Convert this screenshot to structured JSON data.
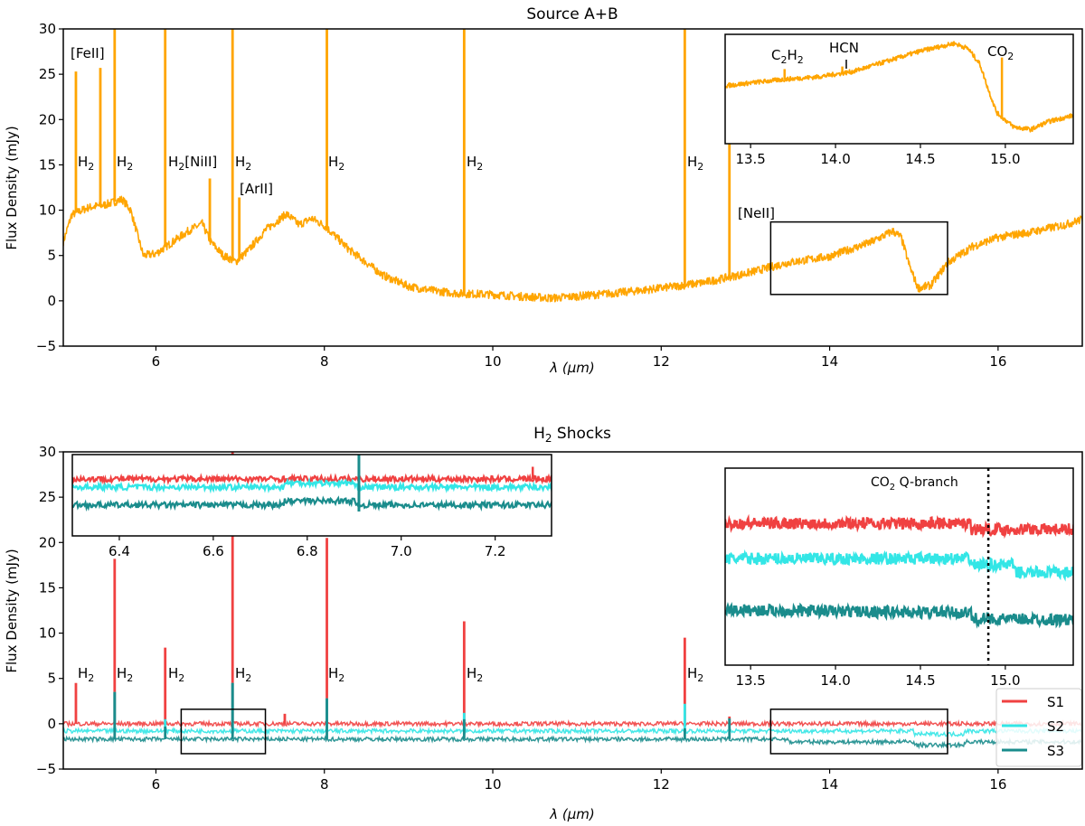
{
  "chart_data": [
    {
      "type": "line",
      "title": "Source A+B",
      "xlabel": "λ (μm)",
      "ylabel": "Flux Density (mJy)",
      "xlim": [
        4.9,
        17.0
      ],
      "ylim": [
        -5,
        30
      ],
      "xticks": [
        6,
        8,
        10,
        12,
        14,
        16
      ],
      "yticks": [
        -5,
        0,
        5,
        10,
        15,
        20,
        25,
        30
      ],
      "series": [
        {
          "name": "Source A+B",
          "color": "#ffa500",
          "continuum": [
            [
              4.9,
              6.5
            ],
            [
              5.0,
              9.5
            ],
            [
              5.2,
              10.3
            ],
            [
              5.4,
              10.6
            ],
            [
              5.6,
              11.2
            ],
            [
              5.7,
              10.0
            ],
            [
              5.85,
              5.0
            ],
            [
              6.0,
              5.2
            ],
            [
              6.2,
              6.5
            ],
            [
              6.4,
              7.8
            ],
            [
              6.55,
              8.5
            ],
            [
              6.65,
              6.5
            ],
            [
              6.8,
              5.0
            ],
            [
              6.95,
              4.3
            ],
            [
              7.1,
              5.6
            ],
            [
              7.3,
              7.8
            ],
            [
              7.55,
              9.6
            ],
            [
              7.7,
              8.4
            ],
            [
              7.85,
              9.1
            ],
            [
              8.0,
              8.3
            ],
            [
              8.3,
              5.6
            ],
            [
              8.7,
              2.8
            ],
            [
              9.0,
              1.6
            ],
            [
              9.3,
              1.1
            ],
            [
              9.6,
              0.8
            ],
            [
              10.0,
              0.7
            ],
            [
              10.3,
              0.5
            ],
            [
              10.7,
              0.3
            ],
            [
              11.0,
              0.5
            ],
            [
              11.5,
              0.9
            ],
            [
              12.0,
              1.4
            ],
            [
              12.5,
              2.0
            ],
            [
              13.0,
              3.0
            ],
            [
              13.5,
              4.2
            ],
            [
              14.0,
              4.9
            ],
            [
              14.5,
              6.5
            ],
            [
              14.75,
              7.7
            ],
            [
              14.85,
              7.0
            ],
            [
              14.95,
              3.8
            ],
            [
              15.05,
              1.4
            ],
            [
              15.2,
              1.7
            ],
            [
              15.4,
              4.2
            ],
            [
              15.7,
              6.0
            ],
            [
              16.0,
              7.0
            ],
            [
              16.4,
              7.6
            ],
            [
              16.8,
              8.4
            ],
            [
              17.0,
              9.0
            ]
          ],
          "peaks": [
            [
              5.05,
              25.3
            ],
            [
              5.34,
              25.7
            ],
            [
              5.51,
              30
            ],
            [
              6.11,
              30
            ],
            [
              6.64,
              13.5
            ],
            [
              6.91,
              30
            ],
            [
              6.99,
              11.4
            ],
            [
              8.03,
              30
            ],
            [
              9.66,
              30
            ],
            [
              12.28,
              30
            ],
            [
              12.81,
              17.8
            ]
          ]
        }
      ],
      "annotations": [
        "[FeII]",
        "H2",
        "H2",
        "H2[NiII]",
        "H2",
        "[ArII]",
        "H2",
        "H2",
        "H2",
        "[NeII]"
      ],
      "zoom_box": {
        "x": [
          13.3,
          15.4
        ],
        "y": [
          0.7,
          8.7
        ]
      },
      "inset": {
        "xlim": [
          13.35,
          15.4
        ],
        "xticks": [
          13.5,
          14.0,
          14.5,
          15.0
        ],
        "labels": [
          "C2H2",
          "HCN",
          "CO2"
        ],
        "continuum": [
          [
            13.35,
            4.5
          ],
          [
            13.55,
            4.8
          ],
          [
            13.7,
            5.0
          ],
          [
            13.9,
            5.2
          ],
          [
            14.1,
            5.6
          ],
          [
            14.3,
            6.4
          ],
          [
            14.5,
            7.2
          ],
          [
            14.7,
            7.8
          ],
          [
            14.78,
            7.4
          ],
          [
            14.85,
            6.2
          ],
          [
            14.9,
            4.2
          ],
          [
            14.95,
            2.4
          ],
          [
            15.05,
            1.3
          ],
          [
            15.15,
            1.1
          ],
          [
            15.25,
            1.7
          ],
          [
            15.4,
            2.2
          ]
        ],
        "peaks": [
          [
            13.7,
            5.8
          ],
          [
            14.04,
            6.0
          ],
          [
            14.98,
            6.7
          ]
        ]
      }
    },
    {
      "type": "line",
      "title": "H2 Shocks",
      "xlabel": "λ (μm)",
      "ylabel": "Flux Density (mJy)",
      "xlim": [
        4.9,
        17.0
      ],
      "ylim": [
        -5,
        30
      ],
      "xticks": [
        6,
        8,
        10,
        12,
        14,
        16
      ],
      "yticks": [
        -5,
        0,
        5,
        10,
        15,
        20,
        25,
        30
      ],
      "series": [
        {
          "name": "S1",
          "color": "#f04141",
          "base": 0.0,
          "peaks": [
            [
              5.05,
              4.5
            ],
            [
              5.51,
              18.2
            ],
            [
              6.11,
              8.4
            ],
            [
              6.91,
              30
            ],
            [
              7.53,
              1.1
            ],
            [
              8.03,
              20.5
            ],
            [
              9.66,
              11.3
            ],
            [
              12.28,
              9.5
            ],
            [
              12.81,
              0.8
            ]
          ]
        },
        {
          "name": "S2",
          "color": "#33e6e6",
          "base": -0.8,
          "peaks": [
            [
              5.51,
              3.5
            ],
            [
              6.11,
              0.5
            ],
            [
              6.91,
              4.5
            ],
            [
              8.03,
              2.8
            ],
            [
              9.66,
              1.2
            ],
            [
              12.28,
              2.2
            ]
          ]
        },
        {
          "name": "S3",
          "color": "#1a8c8c",
          "base": -1.7,
          "peaks": [
            [
              5.51,
              3.5
            ],
            [
              6.11,
              -0.3
            ],
            [
              6.91,
              4.5
            ],
            [
              8.03,
              2.8
            ],
            [
              9.66,
              0.5
            ],
            [
              12.28,
              -0.5
            ],
            [
              12.81,
              0.6
            ]
          ]
        }
      ],
      "annotations": [
        "H2",
        "H2",
        "H2",
        "H2",
        "H2",
        "H2",
        "H2"
      ],
      "zoom_boxes": [
        {
          "x": [
            6.3,
            7.3
          ],
          "y": [
            -3.3,
            1.6
          ]
        },
        {
          "x": [
            13.3,
            15.4
          ],
          "y": [
            -3.3,
            1.6
          ]
        }
      ],
      "legend": [
        "S1",
        "S2",
        "S3"
      ],
      "legend_loc": "lower-right",
      "inset_left": {
        "xlim": [
          6.3,
          7.32
        ],
        "xticks": [
          6.4,
          6.6,
          6.8,
          7.0,
          7.2
        ]
      },
      "inset_right": {
        "xlim": [
          13.35,
          15.4
        ],
        "xticks": [
          13.5,
          14.0,
          14.5,
          15.0
        ],
        "vline_x": 14.9,
        "vline_label": "CO2 Q-branch"
      }
    }
  ]
}
